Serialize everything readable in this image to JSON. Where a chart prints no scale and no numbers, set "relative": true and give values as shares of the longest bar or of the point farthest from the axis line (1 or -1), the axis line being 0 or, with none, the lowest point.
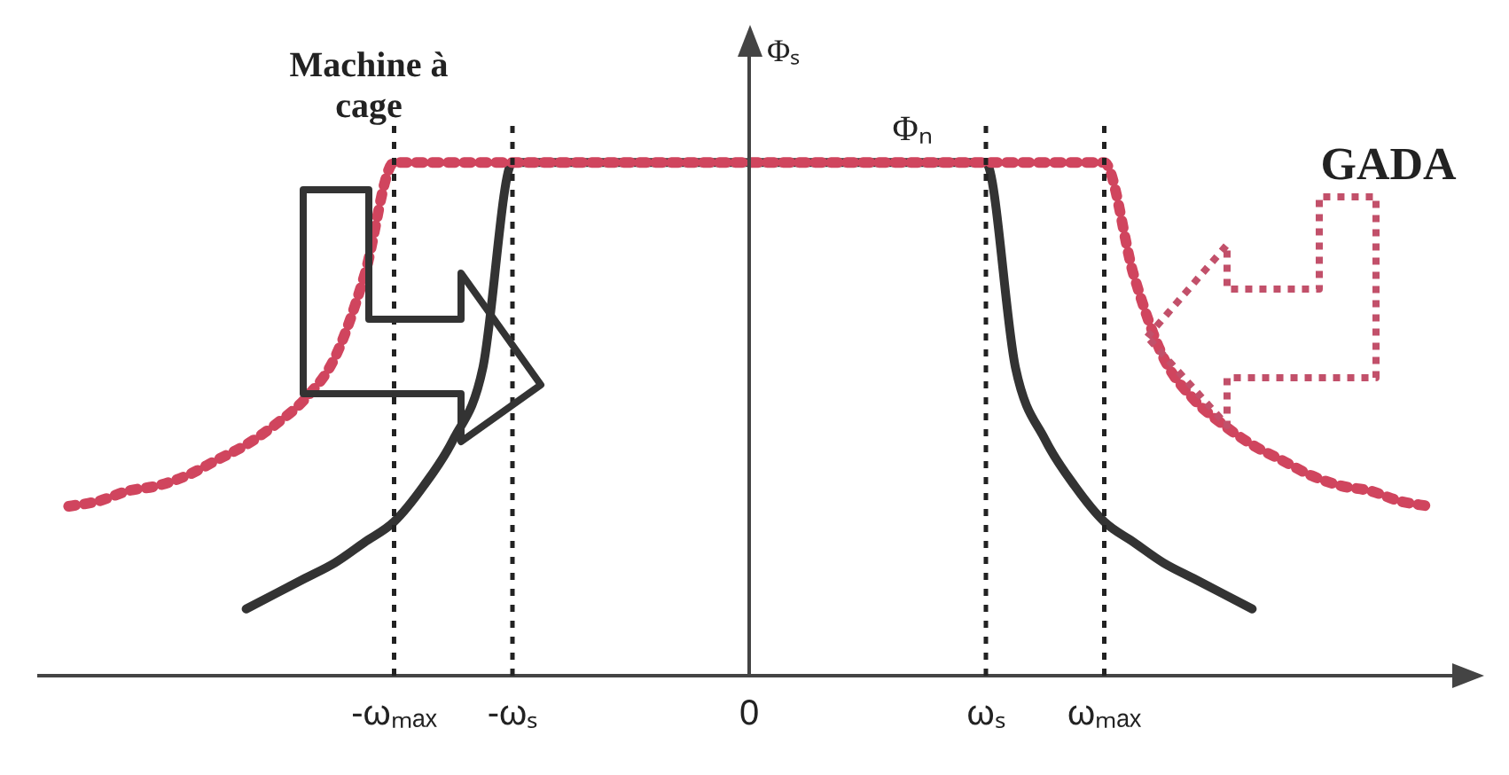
{
  "chart_data": {
    "type": "line",
    "relative": true,
    "ylabel": "Φₛ",
    "categories": [
      null,
      null,
      null,
      null,
      null,
      null,
      null,
      null,
      null,
      null,
      null,
      null,
      "-ωₘₐₓ",
      null,
      null,
      null,
      "-ωₛ",
      null,
      null,
      null,
      null,
      null,
      null,
      null,
      "0",
      null,
      null,
      null,
      null,
      null,
      null,
      null,
      "ωₛ",
      null,
      null,
      null,
      "ωₘₐₓ",
      null,
      null,
      null,
      null,
      null,
      null,
      null,
      null,
      null,
      null,
      null,
      null
    ],
    "series": [
      {
        "color": "#d0455e",
        "line_style": "dotted",
        "values": [
          null,
          0.33,
          0.34,
          0.36,
          0.37,
          0.39,
          0.42,
          0.45,
          0.49,
          0.54,
          0.62,
          0.78,
          1,
          1,
          1,
          1,
          1,
          1,
          1,
          1,
          1,
          1,
          1,
          1,
          1,
          1,
          1,
          1,
          1,
          1,
          1,
          1,
          1,
          1,
          1,
          1,
          1,
          0.78,
          0.62,
          0.54,
          0.49,
          0.45,
          0.42,
          0.39,
          0.37,
          0.36,
          0.34,
          0.33,
          null
        ]
      },
      {
        "color": "#333333",
        "line_style": "solid",
        "values": [
          null,
          null,
          null,
          null,
          null,
          null,
          null,
          0.13,
          0.16,
          0.19,
          0.22,
          0.26,
          0.3,
          0.37,
          0.46,
          0.6,
          1,
          1,
          1,
          1,
          1,
          1,
          1,
          1,
          1,
          1,
          1,
          1,
          1,
          1,
          1,
          1,
          1,
          0.6,
          0.46,
          0.37,
          0.3,
          0.26,
          0.22,
          0.19,
          0.16,
          0.13,
          null,
          null,
          null,
          null,
          null,
          null,
          null
        ]
      }
    ],
    "ref_lines": [
      {
        "axis": "x",
        "value": "-ωₘₐₓ",
        "line_style": "dotted",
        "color": "#222222"
      },
      {
        "axis": "x",
        "value": "-ωₛ",
        "line_style": "dotted",
        "color": "#222222"
      },
      {
        "axis": "x",
        "value": "ωₛ",
        "line_style": "dotted",
        "color": "#222222"
      },
      {
        "axis": "x",
        "value": "ωₘₐₓ",
        "line_style": "dotted",
        "color": "#222222"
      }
    ],
    "annotations": [
      "Machine à cage",
      "GADA",
      {
        "text": "Φₙ",
        "y": 1
      }
    ],
    "legend": false,
    "grid": false,
    "marker": "none"
  }
}
